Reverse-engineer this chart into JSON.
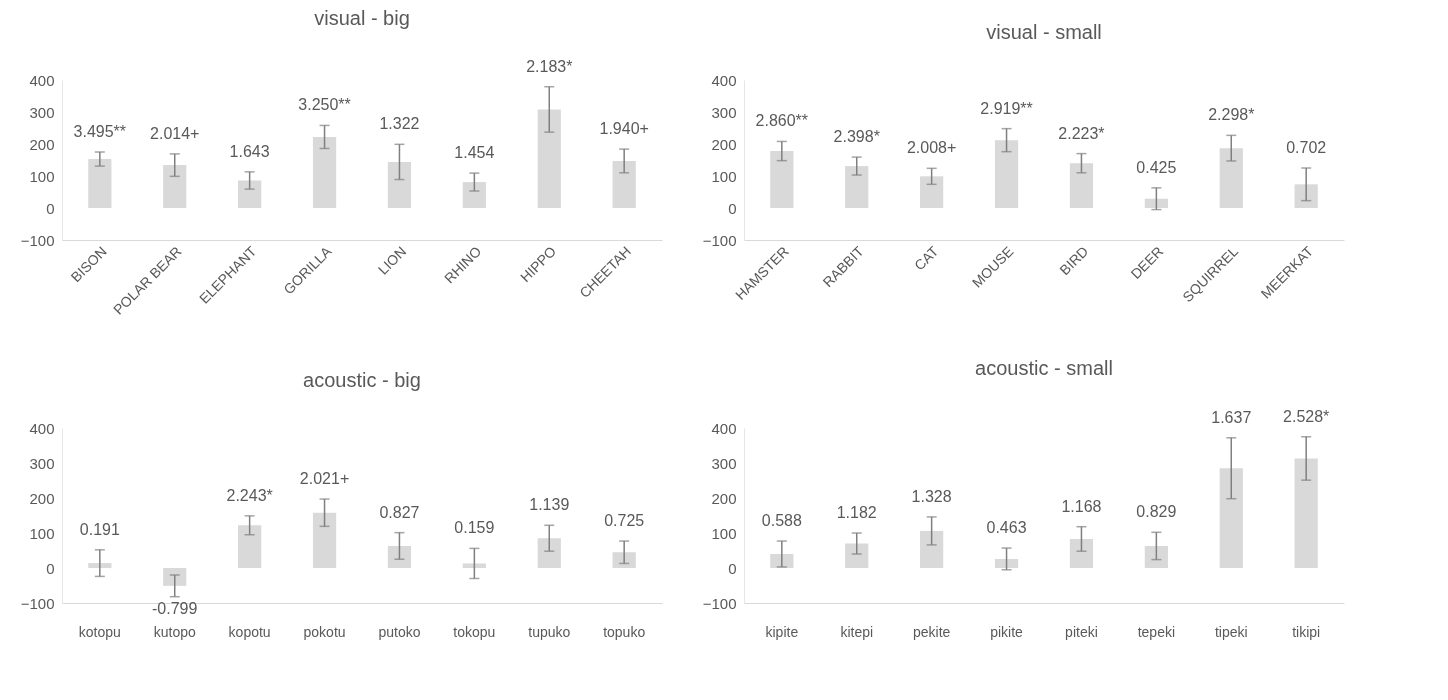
{
  "chart_data": [
    {
      "type": "bar",
      "title": "visual - big",
      "categories": [
        "BISON",
        "POLAR BEAR",
        "ELEPHANT",
        "GORILLA",
        "LION",
        "RHINO",
        "HIPPO",
        "CHEETAH"
      ],
      "values": [
        153,
        134,
        86,
        222,
        144,
        81,
        308,
        147
      ],
      "errors": [
        22,
        35,
        27,
        36,
        55,
        28,
        71,
        37
      ],
      "color": "#d9d9d9",
      "ylim": [
        -100,
        400
      ],
      "yticks": [
        -100,
        0,
        100,
        200,
        300,
        400
      ],
      "annotations": [
        {
          "text": "3.495**",
          "x": "BISON",
          "y": 175
        },
        {
          "text": "2.014+",
          "x": "POLAR BEAR",
          "y": 169
        },
        {
          "text": "1.643",
          "x": "ELEPHANT",
          "y": 113
        },
        {
          "text": "3.250**",
          "x": "GORILLA",
          "y": 258
        },
        {
          "text": "1.322",
          "x": "LION",
          "y": 199
        },
        {
          "text": "1.454",
          "x": "RHINO",
          "y": 109
        },
        {
          "text": "2.183*",
          "x": "HIPPO",
          "y": 379
        },
        {
          "text": "1.940+",
          "x": "CHEETAH",
          "y": 184
        }
      ]
    },
    {
      "type": "bar",
      "title": "visual - small",
      "categories": [
        "HAMSTER",
        "RABBIT",
        "CAT",
        "MOUSE",
        "BIRD",
        "DEER",
        "SQUIRREL",
        "MEERKAT"
      ],
      "values": [
        178,
        131,
        99,
        212,
        140,
        29,
        187,
        74
      ],
      "errors": [
        30,
        28,
        25,
        36,
        30,
        34,
        40,
        51
      ],
      "color": "#d9d9d9",
      "ylim": [
        -100,
        400
      ],
      "yticks": [
        -100,
        0,
        100,
        200,
        300,
        400
      ],
      "annotations": [
        {
          "text": "2.860**",
          "x": "HAMSTER",
          "y": 208
        },
        {
          "text": "2.398*",
          "x": "RABBIT",
          "y": 159
        },
        {
          "text": "2.008+",
          "x": "CAT",
          "y": 124
        },
        {
          "text": "2.919**",
          "x": "MOUSE",
          "y": 248
        },
        {
          "text": "2.223*",
          "x": "BIRD",
          "y": 170
        },
        {
          "text": "0.425",
          "x": "DEER",
          "y": 63
        },
        {
          "text": "2.298*",
          "x": "SQUIRREL",
          "y": 227
        },
        {
          "text": "0.702",
          "x": "MEERKAT",
          "y": 125
        }
      ]
    },
    {
      "type": "bar",
      "title": "acoustic - big",
      "categories": [
        "kotopu",
        "kutopo",
        "kopotu",
        "pokotu",
        "putoko",
        "tokopu",
        "tupuko",
        "topuko"
      ],
      "values": [
        14,
        -51,
        122,
        158,
        63,
        13,
        85,
        45
      ],
      "errors": [
        38,
        31,
        27,
        39,
        38,
        43,
        37,
        32
      ],
      "color": "#d9d9d9",
      "ylim": [
        -100,
        400
      ],
      "yticks": [
        -100,
        0,
        100,
        200,
        300,
        400
      ],
      "annotations": [
        {
          "text": "0.191",
          "x": "kotopu",
          "y": 52
        },
        {
          "text": "-0.799",
          "x": "kutopo",
          "y": -82
        },
        {
          "text": "2.243*",
          "x": "kopotu",
          "y": 149
        },
        {
          "text": "2.021+",
          "x": "pokotu",
          "y": 197
        },
        {
          "text": "0.827",
          "x": "putoko",
          "y": 101
        },
        {
          "text": "0.159",
          "x": "tokopu",
          "y": 56
        },
        {
          "text": "1.139",
          "x": "tupuko",
          "y": 122
        },
        {
          "text": "0.725",
          "x": "topuko",
          "y": 77
        }
      ]
    },
    {
      "type": "bar",
      "title": "acoustic - small",
      "categories": [
        "kipite",
        "kitepi",
        "pekite",
        "pikite",
        "piteki",
        "tepeki",
        "tipeki",
        "tikipi"
      ],
      "values": [
        40,
        70,
        106,
        26,
        83,
        63,
        285,
        313
      ],
      "errors": [
        37,
        30,
        40,
        31,
        35,
        39,
        87,
        62
      ],
      "color": "#d9d9d9",
      "ylim": [
        -100,
        400
      ],
      "yticks": [
        -100,
        0,
        100,
        200,
        300,
        400
      ],
      "annotations": [
        {
          "text": "0.588",
          "x": "kipite",
          "y": 77
        },
        {
          "text": "1.182",
          "x": "kitepi",
          "y": 100
        },
        {
          "text": "1.328",
          "x": "pekite",
          "y": 146
        },
        {
          "text": "0.463",
          "x": "pikite",
          "y": 57
        },
        {
          "text": "1.168",
          "x": "piteki",
          "y": 118
        },
        {
          "text": "0.829",
          "x": "tepeki",
          "y": 102
        },
        {
          "text": "1.637",
          "x": "tipeki",
          "y": 372
        },
        {
          "text": "2.528*",
          "x": "tikipi",
          "y": 375
        }
      ]
    }
  ]
}
